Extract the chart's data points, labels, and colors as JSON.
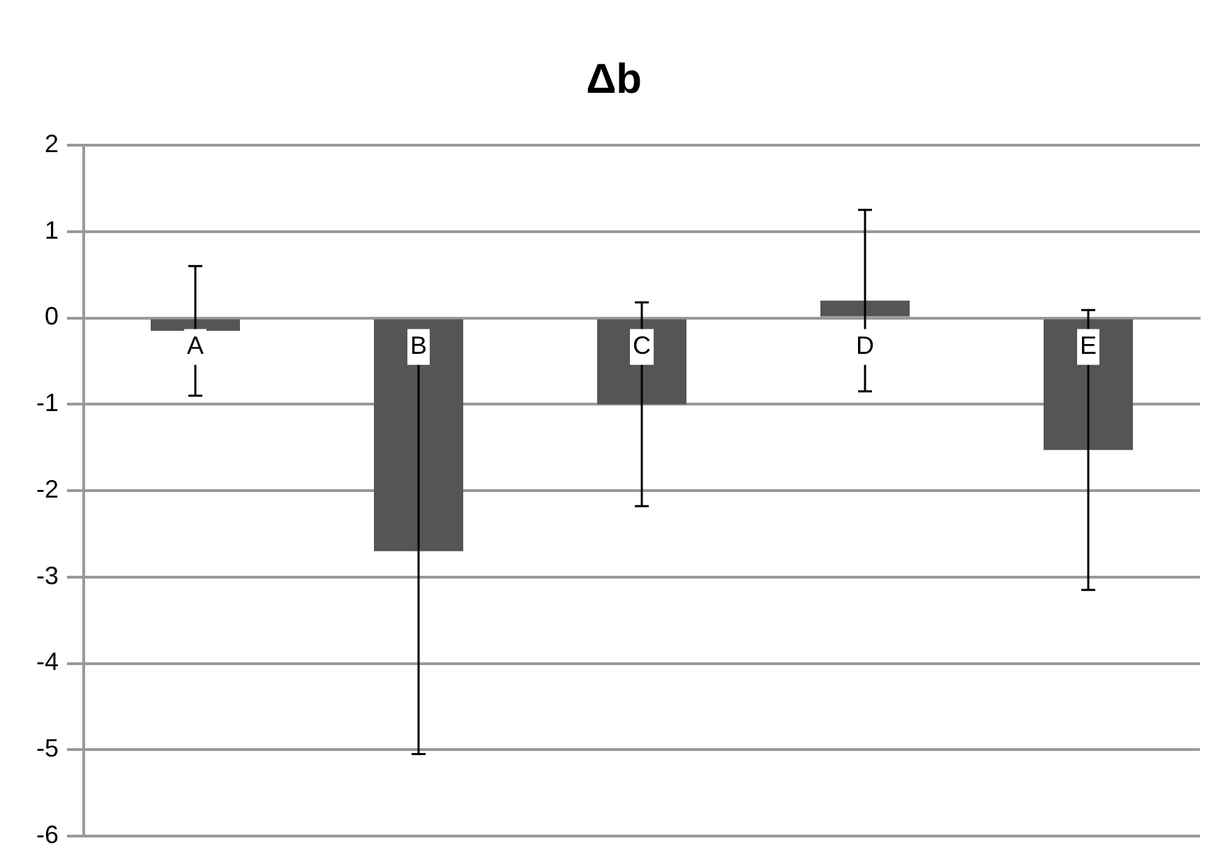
{
  "chart_data": {
    "type": "bar",
    "title": "Δb",
    "categories": [
      "A",
      "B",
      "C",
      "D",
      "E"
    ],
    "values": [
      -0.15,
      -2.7,
      -1.0,
      0.2,
      -1.53
    ],
    "errors": [
      0.75,
      2.35,
      1.18,
      1.05,
      1.62
    ],
    "color": "#555555",
    "ylim": [
      -6,
      2
    ],
    "yticks": [
      -6,
      -5,
      -4,
      -3,
      -2,
      -1,
      0,
      1,
      2
    ],
    "grid": "y",
    "legend": false
  }
}
